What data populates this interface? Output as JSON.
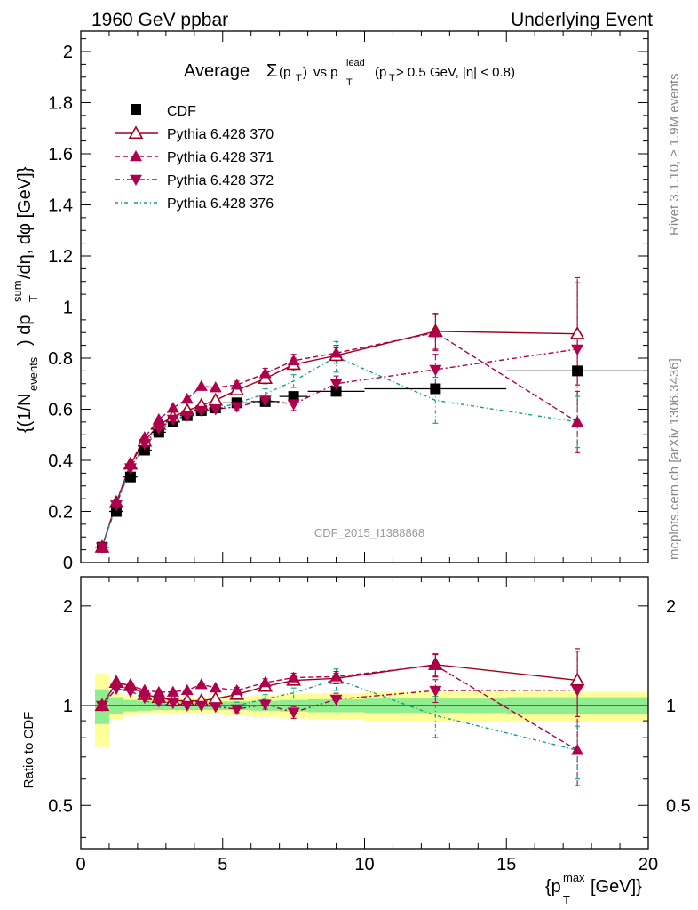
{
  "header": {
    "left": "1960 GeV ppbar",
    "right": "Underlying Event"
  },
  "side": {
    "rivet": "Rivet 3.1.10, ≥ 1.9M events",
    "mcplots": "mcplots.cern.ch [arXiv:1306.3436]"
  },
  "chart_data": {
    "type": "scatter",
    "title": "Average Σ(pT) vs pT lead (pT > 0.5 GeV, |η| < 0.8)",
    "title_parts": {
      "main": "Average ",
      "sigma": "Σ",
      "p": "(p",
      "T": "T",
      "close": ")",
      "vs": "vs p",
      "lead": "lead",
      "T2": "T",
      "cut": "(p",
      "T3": "T",
      "cut2": " > 0.5 GeV, |η| < 0.8)"
    },
    "analysis_label": "CDF_2015_I1388868",
    "ylabel": "{(1/Nevents) dpTsum/dη, dφ [GeV]}",
    "ylabel_parts": {
      "a": "{(1/N",
      "events": "events",
      "b": ") dp",
      "sum": "sum",
      "T": "T",
      "c": "/dη, dφ [GeV]}"
    },
    "ratio_ylabel": "Ratio to CDF",
    "xlabel": "{pTmax [GeV]}",
    "xlabel_parts": {
      "a": "{p",
      "max": "max",
      "T": "T",
      "b": " [GeV]}"
    },
    "xlim": [
      0,
      20
    ],
    "ylim": [
      0,
      2.08
    ],
    "ratio_ylim": [
      0.37,
      2.45
    ],
    "x_ticks": [
      "0",
      "5",
      "10",
      "15",
      "20"
    ],
    "y_ticks": [
      "0",
      "0.2",
      "0.4",
      "0.6",
      "0.8",
      "1",
      "1.2",
      "1.4",
      "1.6",
      "1.8",
      "2"
    ],
    "ratio_ticks": [
      "0.5",
      "1",
      "2"
    ],
    "x": [
      0.75,
      1.25,
      1.75,
      2.25,
      2.75,
      3.25,
      3.75,
      4.25,
      4.75,
      5.5,
      6.5,
      7.5,
      9.0,
      12.5,
      17.5
    ],
    "x_err": [
      0.25,
      0.25,
      0.25,
      0.25,
      0.25,
      0.25,
      0.25,
      0.25,
      0.25,
      0.5,
      0.5,
      0.5,
      1.0,
      2.5,
      2.5
    ],
    "data": {
      "name": "CDF",
      "values": [
        0.06,
        0.2,
        0.335,
        0.44,
        0.51,
        0.55,
        0.575,
        0.595,
        0.605,
        0.625,
        0.63,
        0.65,
        0.67,
        0.68,
        0.75
      ],
      "band_inner": [
        0.12,
        0.06,
        0.04,
        0.035,
        0.03,
        0.03,
        0.03,
        0.03,
        0.03,
        0.03,
        0.035,
        0.04,
        0.045,
        0.05,
        0.06
      ],
      "band_outer": [
        0.25,
        0.09,
        0.07,
        0.06,
        0.06,
        0.06,
        0.06,
        0.06,
        0.06,
        0.065,
        0.075,
        0.085,
        0.09,
        0.1,
        0.1
      ]
    },
    "series": [
      {
        "name": "Pythia 6.428 370",
        "color": "#a0001e",
        "dash": "",
        "marker": "open-triangle-up",
        "values": [
          0.06,
          0.235,
          0.385,
          0.475,
          0.54,
          0.57,
          0.595,
          0.615,
          0.635,
          0.675,
          0.72,
          0.775,
          0.81,
          0.905,
          0.895
        ],
        "errors": [
          0.004,
          0.008,
          0.01,
          0.01,
          0.01,
          0.01,
          0.01,
          0.012,
          0.012,
          0.015,
          0.02,
          0.025,
          0.03,
          0.07,
          0.2
        ]
      },
      {
        "name": "Pythia 6.428 371",
        "color": "#b0004d",
        "dash": "6,3",
        "marker": "triangle-up",
        "values": [
          0.06,
          0.235,
          0.385,
          0.49,
          0.56,
          0.605,
          0.64,
          0.69,
          0.685,
          0.695,
          0.74,
          0.79,
          0.82,
          0.9,
          0.55
        ],
        "errors": [
          0.004,
          0.008,
          0.01,
          0.01,
          0.01,
          0.01,
          0.012,
          0.012,
          0.012,
          0.015,
          0.02,
          0.025,
          0.03,
          0.07,
          0.12
        ]
      },
      {
        "name": "Pythia 6.428 372",
        "color": "#b0004d",
        "dash": "6,3,2,3",
        "marker": "triangle-down",
        "values": [
          0.06,
          0.225,
          0.37,
          0.465,
          0.525,
          0.56,
          0.575,
          0.595,
          0.6,
          0.61,
          0.635,
          0.62,
          0.7,
          0.755,
          0.835
        ],
        "errors": [
          0.004,
          0.008,
          0.01,
          0.01,
          0.01,
          0.01,
          0.01,
          0.012,
          0.012,
          0.015,
          0.02,
          0.025,
          0.03,
          0.06,
          0.28
        ]
      },
      {
        "name": "Pythia 6.428 376",
        "color": "#0f9f8a",
        "dash": "4,3,1,3",
        "marker": "none",
        "values": [
          0.06,
          0.23,
          0.375,
          0.455,
          0.515,
          0.555,
          0.575,
          0.595,
          0.6,
          0.625,
          0.66,
          0.71,
          0.805,
          0.635,
          0.55
        ],
        "errors": [
          0.004,
          0.008,
          0.01,
          0.01,
          0.01,
          0.01,
          0.01,
          0.012,
          0.012,
          0.015,
          0.02,
          0.025,
          0.06,
          0.09,
          0.1
        ]
      }
    ]
  }
}
